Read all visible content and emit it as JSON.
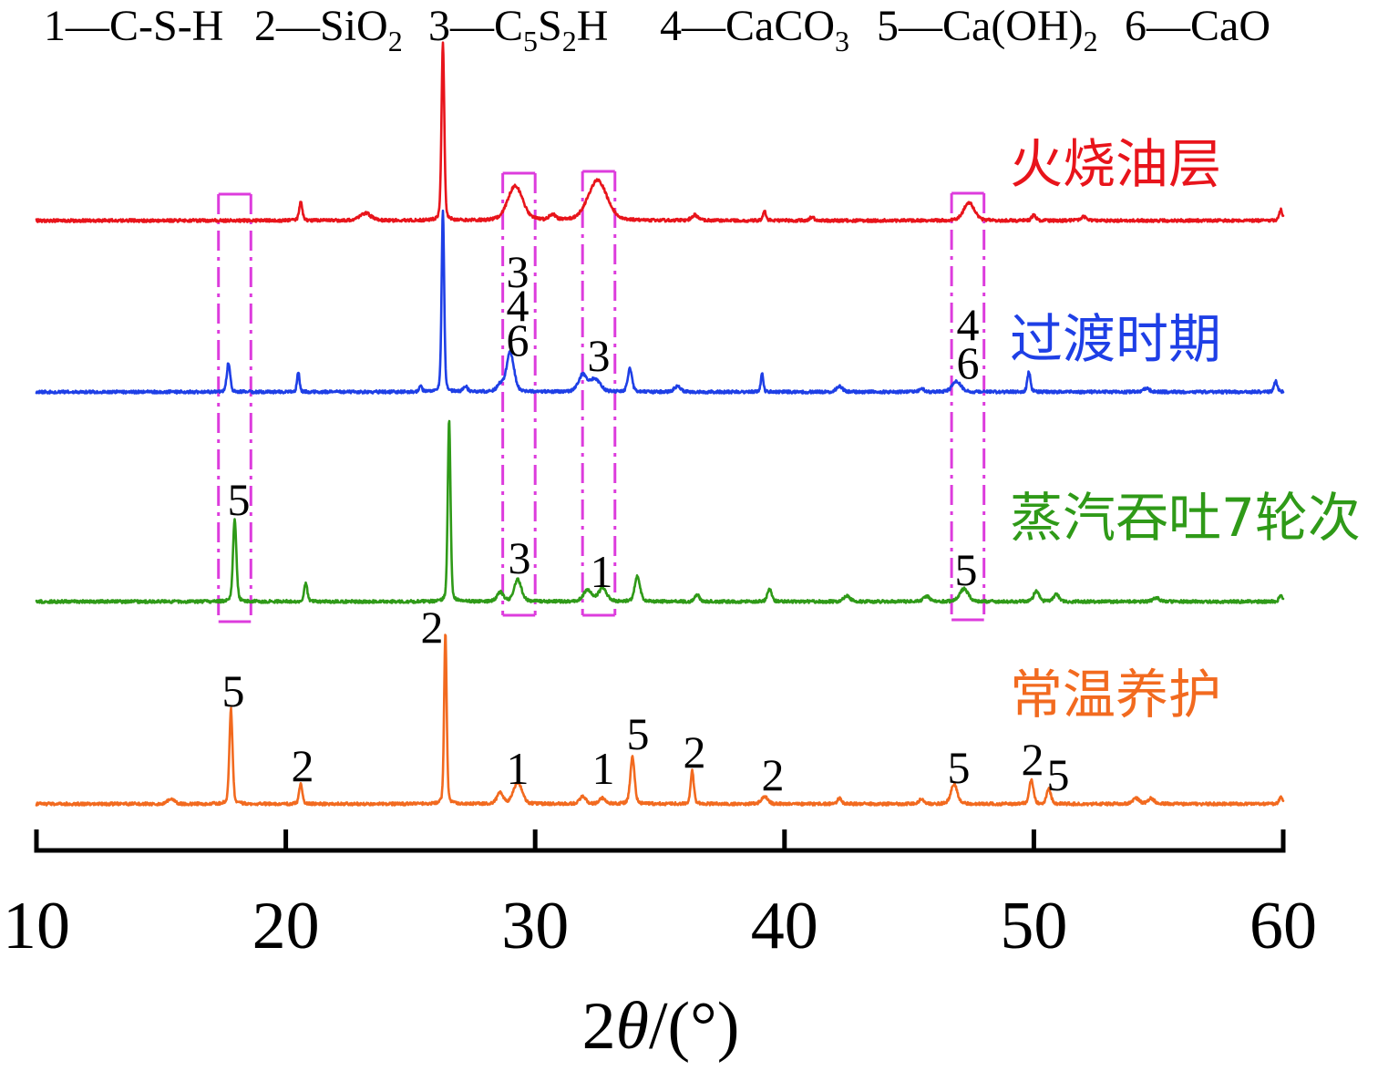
{
  "chart_data": {
    "type": "line",
    "legend_position": "top",
    "grid": false,
    "legend": [
      [
        {
          "text": "1—C-S-H"
        }
      ],
      [
        {
          "text": "2—SiO"
        },
        {
          "sub": "2"
        }
      ],
      [
        {
          "text": "3—C"
        },
        {
          "sub": "5"
        },
        {
          "text": "S"
        },
        {
          "sub": "2"
        },
        {
          "text": "H"
        }
      ],
      [
        {
          "text": "4—CaCO"
        },
        {
          "sub": "3"
        }
      ],
      [
        {
          "text": "5—Ca(OH)"
        },
        {
          "sub": "2"
        }
      ],
      [
        {
          "text": "6—CaO"
        }
      ]
    ],
    "xlabel": "2θ/(°)",
    "xlim": [
      10,
      60
    ],
    "xticks": [
      10,
      20,
      30,
      40,
      50,
      60
    ],
    "highlight_color": "#dd3cdd",
    "highlight_ranges": [
      [
        17.3,
        18.6
      ],
      [
        28.7,
        30.0
      ],
      [
        31.9,
        33.2
      ],
      [
        46.7,
        48.0
      ]
    ],
    "series": [
      {
        "name": "火烧油层",
        "color": "#e8141b",
        "peaks": [
          {
            "x": 20.6,
            "intensity": 10,
            "fwhm": 0.15
          },
          {
            "x": 23.2,
            "intensity": 4,
            "fwhm": 0.5
          },
          {
            "x": 26.3,
            "intensity": 98,
            "fwhm": 0.13
          },
          {
            "x": 29.2,
            "intensity": 19,
            "fwhm": 0.7
          },
          {
            "x": 30.7,
            "intensity": 3,
            "fwhm": 0.3
          },
          {
            "x": 32.5,
            "intensity": 22,
            "fwhm": 0.9
          },
          {
            "x": 36.4,
            "intensity": 3,
            "fwhm": 0.3
          },
          {
            "x": 39.2,
            "intensity": 5,
            "fwhm": 0.15
          },
          {
            "x": 41.1,
            "intensity": 2,
            "fwhm": 0.2
          },
          {
            "x": 47.4,
            "intensity": 10,
            "fwhm": 0.5
          },
          {
            "x": 50.0,
            "intensity": 3,
            "fwhm": 0.2
          },
          {
            "x": 52.0,
            "intensity": 2,
            "fwhm": 0.3
          },
          {
            "x": 59.9,
            "intensity": 6,
            "fwhm": 0.15
          }
        ],
        "peak_labels": []
      },
      {
        "name": "过渡时期",
        "color": "#1e3fe6",
        "peaks": [
          {
            "x": 17.7,
            "intensity": 16,
            "fwhm": 0.16
          },
          {
            "x": 20.5,
            "intensity": 11,
            "fwhm": 0.12
          },
          {
            "x": 25.4,
            "intensity": 3,
            "fwhm": 0.15
          },
          {
            "x": 26.3,
            "intensity": 100,
            "fwhm": 0.12
          },
          {
            "x": 27.2,
            "intensity": 3,
            "fwhm": 0.2
          },
          {
            "x": 28.6,
            "intensity": 4,
            "fwhm": 0.3
          },
          {
            "x": 29.0,
            "intensity": 22,
            "fwhm": 0.35
          },
          {
            "x": 31.9,
            "intensity": 9,
            "fwhm": 0.4
          },
          {
            "x": 32.4,
            "intensity": 7,
            "fwhm": 0.5
          },
          {
            "x": 33.8,
            "intensity": 13,
            "fwhm": 0.2
          },
          {
            "x": 35.7,
            "intensity": 3,
            "fwhm": 0.3
          },
          {
            "x": 39.1,
            "intensity": 10,
            "fwhm": 0.12
          },
          {
            "x": 42.2,
            "intensity": 3,
            "fwhm": 0.3
          },
          {
            "x": 45.5,
            "intensity": 2,
            "fwhm": 0.2
          },
          {
            "x": 46.9,
            "intensity": 6,
            "fwhm": 0.4
          },
          {
            "x": 49.8,
            "intensity": 11,
            "fwhm": 0.15
          },
          {
            "x": 54.5,
            "intensity": 2,
            "fwhm": 0.3
          },
          {
            "x": 59.7,
            "intensity": 6,
            "fwhm": 0.15
          }
        ],
        "peak_labels": [
          {
            "x": 29.0,
            "text": "3"
          },
          {
            "x": 29.0,
            "text": "4"
          },
          {
            "x": 29.0,
            "text": "6"
          },
          {
            "x": 32.4,
            "text": "3"
          },
          {
            "x": 46.9,
            "text": "4"
          },
          {
            "x": 46.9,
            "text": "6"
          }
        ]
      },
      {
        "name": "蒸汽吞吐7轮次",
        "color": "#2f9a18",
        "peaks": [
          {
            "x": 17.95,
            "intensity": 45,
            "fwhm": 0.16
          },
          {
            "x": 20.8,
            "intensity": 10,
            "fwhm": 0.15
          },
          {
            "x": 26.55,
            "intensity": 100,
            "fwhm": 0.13
          },
          {
            "x": 28.6,
            "intensity": 5,
            "fwhm": 0.3
          },
          {
            "x": 29.3,
            "intensity": 12,
            "fwhm": 0.35
          },
          {
            "x": 32.1,
            "intensity": 6,
            "fwhm": 0.4
          },
          {
            "x": 32.7,
            "intensity": 7,
            "fwhm": 0.4
          },
          {
            "x": 34.1,
            "intensity": 14,
            "fwhm": 0.25
          },
          {
            "x": 36.5,
            "intensity": 4,
            "fwhm": 0.2
          },
          {
            "x": 39.4,
            "intensity": 7,
            "fwhm": 0.2
          },
          {
            "x": 42.5,
            "intensity": 3,
            "fwhm": 0.3
          },
          {
            "x": 45.7,
            "intensity": 3,
            "fwhm": 0.3
          },
          {
            "x": 47.2,
            "intensity": 7,
            "fwhm": 0.4
          },
          {
            "x": 50.1,
            "intensity": 6,
            "fwhm": 0.25
          },
          {
            "x": 50.9,
            "intensity": 4,
            "fwhm": 0.25
          },
          {
            "x": 54.9,
            "intensity": 2,
            "fwhm": 0.3
          },
          {
            "x": 59.9,
            "intensity": 4,
            "fwhm": 0.15
          }
        ],
        "peak_labels": [
          {
            "x": 17.95,
            "text": "5"
          },
          {
            "x": 29.3,
            "text": "3"
          },
          {
            "x": 32.7,
            "text": "1"
          },
          {
            "x": 47.2,
            "text": "5"
          }
        ]
      },
      {
        "name": "常温养护",
        "color": "#f26a1f",
        "peaks": [
          {
            "x": 15.4,
            "intensity": 3,
            "fwhm": 0.3
          },
          {
            "x": 17.8,
            "intensity": 52,
            "fwhm": 0.15
          },
          {
            "x": 20.6,
            "intensity": 11,
            "fwhm": 0.15
          },
          {
            "x": 26.4,
            "intensity": 94,
            "fwhm": 0.12
          },
          {
            "x": 28.6,
            "intensity": 6,
            "fwhm": 0.3
          },
          {
            "x": 29.3,
            "intensity": 12,
            "fwhm": 0.4
          },
          {
            "x": 31.9,
            "intensity": 4,
            "fwhm": 0.3
          },
          {
            "x": 32.7,
            "intensity": 3,
            "fwhm": 0.3
          },
          {
            "x": 33.9,
            "intensity": 26,
            "fwhm": 0.2
          },
          {
            "x": 36.3,
            "intensity": 18,
            "fwhm": 0.15
          },
          {
            "x": 39.2,
            "intensity": 4,
            "fwhm": 0.3
          },
          {
            "x": 42.2,
            "intensity": 3,
            "fwhm": 0.2
          },
          {
            "x": 45.5,
            "intensity": 3,
            "fwhm": 0.2
          },
          {
            "x": 46.8,
            "intensity": 11,
            "fwhm": 0.3
          },
          {
            "x": 49.9,
            "intensity": 13,
            "fwhm": 0.2
          },
          {
            "x": 50.6,
            "intensity": 8,
            "fwhm": 0.2
          },
          {
            "x": 54.1,
            "intensity": 3,
            "fwhm": 0.3
          },
          {
            "x": 54.7,
            "intensity": 3,
            "fwhm": 0.3
          },
          {
            "x": 59.9,
            "intensity": 4,
            "fwhm": 0.15
          }
        ],
        "peak_labels": [
          {
            "x": 17.8,
            "text": "5"
          },
          {
            "x": 20.6,
            "text": "2"
          },
          {
            "x": 26.4,
            "text": "2"
          },
          {
            "x": 29.3,
            "text": "1"
          },
          {
            "x": 32.7,
            "text": "1"
          },
          {
            "x": 33.9,
            "text": "5"
          },
          {
            "x": 36.3,
            "text": "2"
          },
          {
            "x": 39.2,
            "text": "2"
          },
          {
            "x": 46.8,
            "text": "5"
          },
          {
            "x": 49.9,
            "text": "2"
          },
          {
            "x": 50.6,
            "text": "5"
          }
        ]
      }
    ]
  }
}
